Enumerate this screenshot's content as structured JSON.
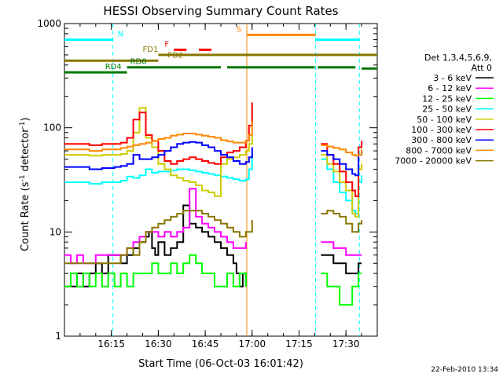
{
  "chart_data": {
    "type": "line",
    "title": "HESSI Observing Summary Count Rates",
    "xlabel": "Start Time (06-Oct-03 16:01:42)",
    "ylabel_main": "Count Rate (s",
    "ylabel_sup1": "-1",
    "ylabel_mid": " detector",
    "ylabel_sup2": "-1",
    "ylabel_end": ")",
    "xlim_min": [
      0,
      100
    ],
    "ylim": [
      1,
      1000
    ],
    "y_scale": "log",
    "x_ticks": [
      {
        "minute": 15,
        "label": "16:15"
      },
      {
        "minute": 30,
        "label": "16:30"
      },
      {
        "minute": 45,
        "label": "16:45"
      },
      {
        "minute": 60,
        "label": "17:00"
      },
      {
        "minute": 75,
        "label": "17:15"
      },
      {
        "minute": 90,
        "label": "17:30"
      }
    ],
    "y_ticks": [
      {
        "value": 1,
        "label": "1"
      },
      {
        "value": 10,
        "label": "10"
      },
      {
        "value": 100,
        "label": "100"
      },
      {
        "value": 1000,
        "label": "1000"
      }
    ],
    "legend_header": [
      "Det 1,3,4,5,6,9,",
      "Att 0"
    ],
    "legend_placement": "right",
    "series": [
      {
        "name": "3 - 6 keV",
        "color": "#000000",
        "x": [
          0,
          2,
          4,
          6,
          8,
          10,
          12,
          14,
          16,
          18,
          20,
          22,
          24,
          26,
          27,
          28,
          29,
          30,
          32,
          34,
          36,
          38,
          40,
          42,
          44,
          46,
          48,
          50,
          52,
          54,
          55,
          56,
          57,
          58
        ],
        "y": [
          3,
          3,
          4,
          3,
          4,
          5,
          4,
          6,
          6,
          5,
          6,
          7,
          8,
          9,
          10,
          7,
          6,
          8,
          6,
          7,
          8,
          18,
          12,
          11,
          10,
          9,
          8,
          7,
          6,
          5,
          4,
          3,
          4,
          3
        ]
      },
      {
        "name": "6 - 12 keV",
        "color": "#ff00ff",
        "x": [
          0,
          2,
          4,
          6,
          8,
          10,
          12,
          14,
          16,
          18,
          20,
          22,
          24,
          26,
          28,
          30,
          32,
          34,
          36,
          38,
          40,
          42,
          44,
          46,
          48,
          50,
          52,
          54,
          56,
          58
        ],
        "y": [
          6,
          5,
          6,
          5,
          5,
          6,
          6,
          6,
          6,
          6,
          7,
          8,
          9,
          10,
          10,
          9,
          10,
          9,
          10,
          11,
          26,
          14,
          12,
          11,
          10,
          9,
          8,
          7,
          7,
          8
        ]
      },
      {
        "name": "12 - 25 keV",
        "color": "#00ff00",
        "x": [
          0,
          2,
          4,
          6,
          8,
          10,
          12,
          14,
          16,
          18,
          20,
          22,
          24,
          26,
          28,
          30,
          32,
          34,
          36,
          38,
          40,
          42,
          44,
          46,
          48,
          50,
          52,
          54,
          56,
          58
        ],
        "y": [
          3,
          4,
          3,
          4,
          3,
          4,
          3,
          4,
          3,
          4,
          3,
          4,
          4,
          4,
          5,
          4,
          4,
          5,
          4,
          5,
          6,
          5,
          4,
          4,
          3,
          3,
          4,
          3,
          4,
          3
        ]
      },
      {
        "name": "25 - 50 keV",
        "color": "#00ffff",
        "x": [
          0,
          4,
          8,
          12,
          16,
          18,
          20,
          22,
          24,
          26,
          28,
          30,
          32,
          34,
          36,
          38,
          40,
          42,
          44,
          46,
          48,
          50,
          52,
          54,
          56,
          58,
          59,
          60
        ],
        "y": [
          30,
          30,
          29,
          30,
          30,
          31,
          34,
          33,
          35,
          40,
          37,
          38,
          38,
          39,
          40,
          40,
          39,
          38,
          37,
          36,
          35,
          34,
          33,
          32,
          31,
          32,
          40,
          55
        ]
      },
      {
        "name": "50 - 100 keV",
        "color": "#cccc00",
        "x": [
          0,
          4,
          8,
          12,
          16,
          18,
          20,
          22,
          24,
          26,
          28,
          30,
          32,
          34,
          36,
          38,
          40,
          42,
          44,
          46,
          48,
          50,
          52,
          54,
          56,
          58,
          59,
          60
        ],
        "y": [
          55,
          55,
          54,
          55,
          55,
          56,
          60,
          90,
          155,
          80,
          65,
          45,
          40,
          35,
          33,
          31,
          30,
          28,
          25,
          24,
          22,
          45,
          50,
          52,
          55,
          60,
          70,
          85
        ]
      },
      {
        "name": "100 - 300 keV",
        "color": "#ff0000",
        "x": [
          0,
          4,
          8,
          12,
          16,
          18,
          20,
          22,
          24,
          26,
          28,
          30,
          32,
          34,
          36,
          38,
          40,
          42,
          44,
          46,
          48,
          50,
          52,
          54,
          56,
          58,
          59,
          60
        ],
        "y": [
          70,
          70,
          68,
          70,
          70,
          72,
          80,
          120,
          140,
          85,
          75,
          60,
          48,
          45,
          48,
          50,
          52,
          50,
          48,
          46,
          45,
          52,
          58,
          60,
          65,
          75,
          105,
          175
        ]
      },
      {
        "name": "300 - 800 keV",
        "color": "#0000ff",
        "x": [
          0,
          4,
          8,
          12,
          16,
          18,
          20,
          22,
          24,
          26,
          28,
          30,
          32,
          34,
          36,
          38,
          40,
          42,
          44,
          46,
          48,
          50,
          52,
          54,
          56,
          58,
          59,
          60
        ],
        "y": [
          42,
          42,
          40,
          41,
          42,
          43,
          45,
          55,
          50,
          50,
          52,
          55,
          60,
          65,
          70,
          72,
          73,
          72,
          68,
          65,
          60,
          55,
          52,
          48,
          45,
          47,
          52,
          65
        ]
      },
      {
        "name": "800 - 7000 keV",
        "color": "#ff8800",
        "x": [
          0,
          4,
          8,
          12,
          16,
          18,
          20,
          22,
          24,
          26,
          28,
          30,
          32,
          34,
          36,
          38,
          40,
          42,
          44,
          46,
          48,
          50,
          52,
          54,
          56,
          58,
          59,
          60
        ],
        "y": [
          62,
          62,
          60,
          62,
          62,
          64,
          66,
          68,
          70,
          72,
          75,
          78,
          80,
          84,
          86,
          88,
          88,
          86,
          84,
          82,
          80,
          76,
          74,
          72,
          72,
          75,
          85,
          115
        ]
      },
      {
        "name": "7000 - 20000 keV",
        "color": "#887700",
        "x": [
          0,
          4,
          8,
          12,
          16,
          18,
          20,
          22,
          24,
          26,
          28,
          30,
          32,
          34,
          36,
          38,
          40,
          42,
          44,
          46,
          48,
          50,
          52,
          54,
          56,
          58,
          60
        ],
        "y": [
          5,
          5,
          5,
          5,
          5,
          6,
          7,
          6,
          8,
          10,
          11,
          12,
          13,
          14,
          15,
          16,
          16,
          16,
          15,
          14,
          13,
          12,
          11,
          10,
          9,
          10,
          13
        ]
      }
    ],
    "series_after_gap": [
      {
        "name": "3 - 6 keV",
        "x": [
          82,
          84,
          86,
          88,
          90,
          92,
          93,
          94,
          95
        ],
        "y": [
          6,
          6,
          5,
          5,
          4,
          4,
          4,
          5,
          5
        ]
      },
      {
        "name": "6 - 12 keV",
        "x": [
          82,
          84,
          86,
          88,
          90,
          92,
          93,
          94,
          95
        ],
        "y": [
          8,
          8,
          7,
          7,
          6,
          6,
          6,
          6,
          6
        ]
      },
      {
        "name": "12 - 25 keV",
        "x": [
          82,
          84,
          86,
          88,
          90,
          92,
          93,
          94,
          95
        ],
        "y": [
          4,
          3,
          3,
          2,
          2,
          3,
          3,
          4,
          4
        ]
      },
      {
        "name": "25 - 50 keV",
        "x": [
          82,
          84,
          86,
          88,
          90,
          92,
          93,
          94,
          95
        ],
        "y": [
          50,
          40,
          30,
          24,
          20,
          16,
          15,
          30,
          35
        ]
      },
      {
        "name": "50 - 100 keV",
        "x": [
          82,
          84,
          86,
          88,
          90,
          92,
          93,
          94,
          95
        ],
        "y": [
          55,
          45,
          38,
          30,
          25,
          15,
          14,
          40,
          45
        ]
      },
      {
        "name": "100 - 300 keV",
        "x": [
          82,
          84,
          86,
          88,
          90,
          92,
          93,
          94,
          95
        ],
        "y": [
          70,
          55,
          45,
          38,
          30,
          25,
          22,
          65,
          75
        ]
      },
      {
        "name": "300 - 800 keV",
        "x": [
          82,
          84,
          86,
          88,
          90,
          92,
          93,
          94,
          95
        ],
        "y": [
          60,
          55,
          50,
          45,
          40,
          36,
          35,
          55,
          60
        ]
      },
      {
        "name": "800 - 7000 keV",
        "x": [
          82,
          84,
          86,
          88,
          90,
          92,
          93,
          94,
          95
        ],
        "y": [
          68,
          66,
          64,
          62,
          58,
          55,
          54,
          55,
          62
        ]
      },
      {
        "name": "7000 - 20000 keV",
        "x": [
          82,
          84,
          86,
          88,
          90,
          92,
          93,
          94,
          95
        ],
        "y": [
          15,
          16,
          15,
          14,
          12,
          10,
          10,
          12,
          13
        ]
      }
    ],
    "vlines": [
      {
        "minute": 15.5,
        "color": "#00ffff",
        "dashed": true
      },
      {
        "minute": 58.3,
        "color": "#ff8800",
        "dashed": false
      },
      {
        "minute": 80.3,
        "color": "#00ffff",
        "dashed": true
      },
      {
        "minute": 94.3,
        "color": "#00ffff",
        "dashed": true
      }
    ],
    "flags": [
      {
        "label": "N",
        "color": "#00ffff",
        "y": 700,
        "segments": [
          [
            0,
            15.5
          ],
          [
            80.3,
            94.3
          ]
        ],
        "label_x": 17
      },
      {
        "label": "S",
        "color": "#ff8800",
        "y": 780,
        "segments": [
          [
            58.3,
            80.3
          ]
        ],
        "label_x": 55
      },
      {
        "label": "F",
        "color": "#ff0000",
        "y": 560,
        "segments": [
          [
            35,
            39
          ],
          [
            43,
            47
          ]
        ],
        "label_x": 32,
        "dashed": true
      },
      {
        "label": "FD1",
        "color": "#887700",
        "y": 500,
        "segments": [
          [
            30,
            100
          ]
        ],
        "label_x": 25
      },
      {
        "label": "FD2",
        "color": "#887700",
        "y": 440,
        "segments": [
          [
            0,
            30
          ]
        ],
        "label_x": 33
      },
      {
        "label": "RD0",
        "color": "#007700",
        "y": 380,
        "segments": [
          [
            20,
            50
          ],
          [
            52,
            80
          ],
          [
            81,
            93
          ]
        ],
        "label_x": 21
      },
      {
        "label": "RD4",
        "color": "#007700",
        "y": 340,
        "segments": [
          [
            0,
            15
          ],
          [
            15,
            20
          ]
        ],
        "label_x": 13
      },
      {
        "label": "",
        "color": "#007700",
        "y": 370,
        "segments": [
          [
            95,
            100
          ]
        ]
      }
    ],
    "timestamp": "22-Feb-2010 13:34"
  }
}
